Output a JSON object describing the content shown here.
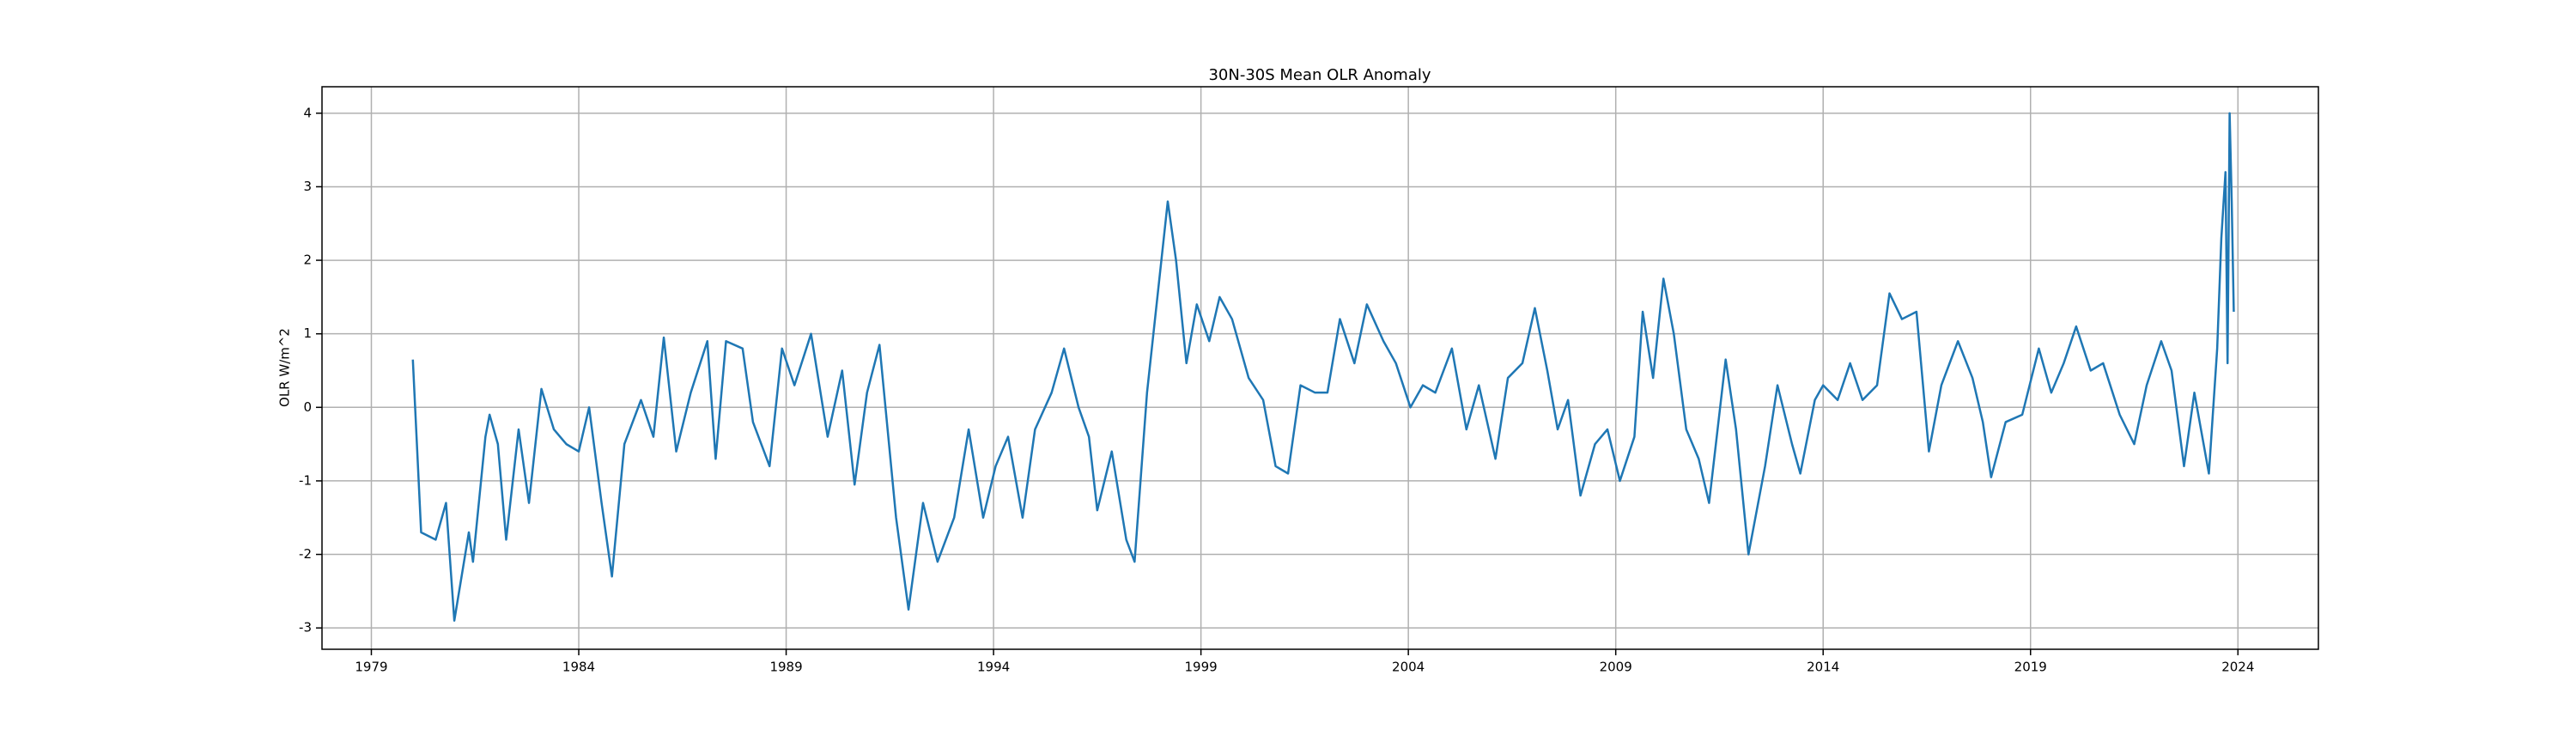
{
  "chart_data": {
    "type": "line",
    "title": "30N-30S Mean OLR Anomaly",
    "ylabel": "OLR W/m^2",
    "x": [
      1980.0,
      1980.2,
      1980.55,
      1980.8,
      1981.0,
      1981.35,
      1981.45,
      1981.75,
      1981.85,
      1982.05,
      1982.25,
      1982.55,
      1982.8,
      1983.1,
      1983.4,
      1983.7,
      1984.0,
      1984.25,
      1984.55,
      1984.8,
      1985.1,
      1985.5,
      1985.8,
      1986.05,
      1986.35,
      1986.7,
      1987.1,
      1987.3,
      1987.55,
      1987.95,
      1988.2,
      1988.6,
      1988.9,
      1989.2,
      1989.6,
      1990.0,
      1990.35,
      1990.65,
      1990.95,
      1991.25,
      1991.65,
      1991.95,
      1992.3,
      1992.65,
      1993.05,
      1993.4,
      1993.75,
      1994.05,
      1994.35,
      1994.7,
      1995.0,
      1995.4,
      1995.7,
      1996.05,
      1996.3,
      1996.5,
      1996.85,
      1997.2,
      1997.4,
      1997.7,
      1997.95,
      1998.2,
      1998.4,
      1998.65,
      1998.9,
      1999.2,
      1999.45,
      1999.75,
      2000.15,
      2000.5,
      2000.8,
      2001.1,
      2001.4,
      2001.75,
      2002.05,
      2002.35,
      2002.7,
      2003.0,
      2003.4,
      2003.7,
      2004.05,
      2004.35,
      2004.65,
      2005.05,
      2005.4,
      2005.7,
      2006.1,
      2006.4,
      2006.75,
      2007.05,
      2007.35,
      2007.6,
      2007.85,
      2008.15,
      2008.5,
      2008.8,
      2009.1,
      2009.45,
      2009.65,
      2009.9,
      2010.15,
      2010.4,
      2010.7,
      2011.0,
      2011.25,
      2011.65,
      2011.9,
      2012.2,
      2012.6,
      2012.9,
      2013.25,
      2013.45,
      2013.8,
      2014.0,
      2014.35,
      2014.65,
      2014.95,
      2015.3,
      2015.6,
      2015.9,
      2016.25,
      2016.55,
      2016.85,
      2017.25,
      2017.6,
      2017.85,
      2018.05,
      2018.4,
      2018.8,
      2019.2,
      2019.5,
      2019.8,
      2020.1,
      2020.45,
      2020.75,
      2021.15,
      2021.5,
      2021.8,
      2022.15,
      2022.4,
      2022.7,
      2022.95,
      2023.3,
      2023.5,
      2023.6,
      2023.7,
      2023.75,
      2023.8,
      2023.85,
      2023.9
    ],
    "series": [
      {
        "name": "OLR",
        "color": "#1f77b4",
        "values": [
          0.65,
          -1.7,
          -1.8,
          -1.3,
          -2.9,
          -1.7,
          -2.1,
          -0.4,
          -0.1,
          -0.5,
          -1.8,
          -0.3,
          -1.3,
          0.25,
          -0.3,
          -0.5,
          -0.6,
          0.0,
          -1.3,
          -2.3,
          -0.5,
          0.1,
          -0.4,
          0.95,
          -0.6,
          0.2,
          0.9,
          -0.7,
          0.9,
          0.8,
          -0.2,
          -0.8,
          0.8,
          0.3,
          1.0,
          -0.4,
          0.5,
          -1.05,
          0.2,
          0.85,
          -1.5,
          -2.75,
          -1.3,
          -2.1,
          -1.5,
          -0.3,
          -1.5,
          -0.8,
          -0.4,
          -1.5,
          -0.3,
          0.2,
          0.8,
          0.0,
          -0.4,
          -1.4,
          -0.6,
          -1.8,
          -2.1,
          0.2,
          1.5,
          2.8,
          2.0,
          0.6,
          1.4,
          0.9,
          1.5,
          1.2,
          0.4,
          0.1,
          -0.8,
          -0.9,
          0.3,
          0.2,
          0.2,
          1.2,
          0.6,
          1.4,
          0.9,
          0.6,
          0.0,
          0.3,
          0.2,
          0.8,
          -0.3,
          0.3,
          -0.7,
          0.4,
          0.6,
          1.35,
          0.5,
          -0.3,
          0.1,
          -1.2,
          -0.5,
          -0.3,
          -1.0,
          -0.4,
          1.3,
          0.4,
          1.75,
          1.0,
          -0.3,
          -0.7,
          -1.3,
          0.65,
          -0.3,
          -2.0,
          -0.8,
          0.3,
          -0.5,
          -0.9,
          0.1,
          0.3,
          0.1,
          0.6,
          0.1,
          0.3,
          1.55,
          1.2,
          1.3,
          -0.6,
          0.3,
          0.9,
          0.4,
          -0.2,
          -0.95,
          -0.2,
          -0.1,
          0.8,
          0.2,
          0.6,
          1.1,
          0.5,
          0.6,
          -0.1,
          -0.5,
          0.3,
          0.9,
          0.5,
          -0.8,
          0.2,
          -0.9,
          0.8,
          2.3,
          3.2,
          0.6,
          4.0,
          2.8,
          1.3
        ]
      }
    ],
    "xlim": [
      1977.81,
      2025.94
    ],
    "xticks": [
      1979,
      1984,
      1989,
      1994,
      1999,
      2004,
      2009,
      2014,
      2019,
      2024
    ],
    "ylim": [
      -3.29,
      4.36
    ],
    "yticks": [
      -3,
      -2,
      -1,
      0,
      1,
      2,
      3,
      4
    ],
    "grid": true
  }
}
